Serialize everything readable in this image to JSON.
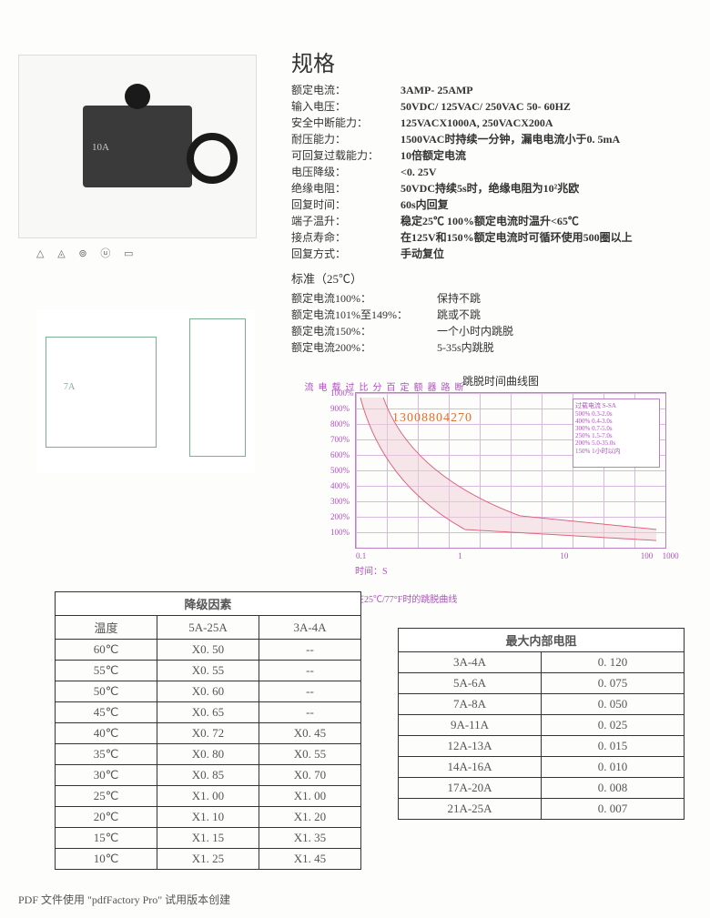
{
  "title": "规格",
  "product_label": "10A",
  "certs": "△ ◬ ⊚ ⓤ ▭",
  "specs": [
    {
      "label": "额定电流：",
      "value": "3AMP- 25AMP"
    },
    {
      "label": "输入电压：",
      "value": "50VDC/ 125VAC/ 250VAC 50- 60HZ"
    },
    {
      "label": "安全中断能力：",
      "value": "125VACX1000A, 250VACX200A"
    },
    {
      "label": "耐压能力：",
      "value": "1500VAC时持续一分钟，漏电电流小于0. 5mA"
    },
    {
      "label": "可回复过载能力：",
      "value": "10倍额定电流"
    },
    {
      "label": "电压降级：",
      "value": "<0. 25V"
    },
    {
      "label": "绝缘电阻：",
      "value": "50VDC持续5s时，绝缘电阻为10²兆欧"
    },
    {
      "label": "回复时间：",
      "value": "60s内回复"
    },
    {
      "label": "端子温升：",
      "value": "稳定25℃ 100%额定电流时温升<65℃"
    },
    {
      "label": "接点寿命：",
      "value": "在125V和150%额定电流时可循环使用500圈以上"
    },
    {
      "label": "回复方式：",
      "value": "手动复位"
    }
  ],
  "standard_title": "标准（25℃）",
  "standards": [
    {
      "label": "额定电流100%：",
      "value": "保持不跳"
    },
    {
      "label": "额定电流101%至149%：",
      "value": "跳或不跳"
    },
    {
      "label": "额定电流150%：",
      "value": "一个小时内跳脱"
    },
    {
      "label": "额定电流200%：",
      "value": "5-35s内跳脱"
    }
  ],
  "diagram_label": "7A",
  "chart": {
    "title": "跳脱时间曲线图",
    "ylabel": "断路器额定百分比过载电流",
    "yticks": [
      "1000%",
      "900%",
      "800%",
      "700%",
      "600%",
      "500%",
      "400%",
      "300%",
      "200%",
      "100%"
    ],
    "xticks": [
      {
        "pos": 0,
        "label": "0.1"
      },
      {
        "pos": 33,
        "label": "1"
      },
      {
        "pos": 66,
        "label": "10"
      },
      {
        "pos": 92,
        "label": "100"
      },
      {
        "pos": 99,
        "label": "1000"
      }
    ],
    "xlabel1": "时间：S",
    "xlabel2": "在25℃/77°F时的跳脱曲线",
    "watermark": "13008804270",
    "legend_title": "过载电流 S-SA",
    "legend_rows": [
      "500%  0.3-2.0s",
      "400%  0.4-3.0s",
      "300%  0.7-5.0s",
      "250%  1.5-7.0s",
      "200%  5.0-35.0s",
      "150%  1小时以内"
    ],
    "curve_color": "#d84060",
    "grid_color": "#d9b8e0"
  },
  "table1": {
    "title": "降级因素",
    "headers": [
      "温度",
      "5A-25A",
      "3A-4A"
    ],
    "rows": [
      [
        "60℃",
        "X0. 50",
        "--"
      ],
      [
        "55℃",
        "X0. 55",
        "--"
      ],
      [
        "50℃",
        "X0. 60",
        "--"
      ],
      [
        "45℃",
        "X0. 65",
        "--"
      ],
      [
        "40℃",
        "X0. 72",
        "X0. 45"
      ],
      [
        "35℃",
        "X0. 80",
        "X0. 55"
      ],
      [
        "30℃",
        "X0. 85",
        "X0. 70"
      ],
      [
        "25℃",
        "X1. 00",
        "X1. 00"
      ],
      [
        "20℃",
        "X1. 10",
        "X1. 20"
      ],
      [
        "15℃",
        "X1. 15",
        "X1. 35"
      ],
      [
        "10℃",
        "X1. 25",
        "X1. 45"
      ]
    ]
  },
  "table2": {
    "title": "最大内部电阻",
    "rows": [
      [
        "3A-4A",
        "0. 120"
      ],
      [
        "5A-6A",
        "0. 075"
      ],
      [
        "7A-8A",
        "0. 050"
      ],
      [
        "9A-11A",
        "0. 025"
      ],
      [
        "12A-13A",
        "0. 015"
      ],
      [
        "14A-16A",
        "0. 010"
      ],
      [
        "17A-20A",
        "0. 008"
      ],
      [
        "21A-25A",
        "0. 007"
      ]
    ]
  },
  "footer": "PDF 文件使用 \"pdfFactory Pro\" 试用版本创建"
}
